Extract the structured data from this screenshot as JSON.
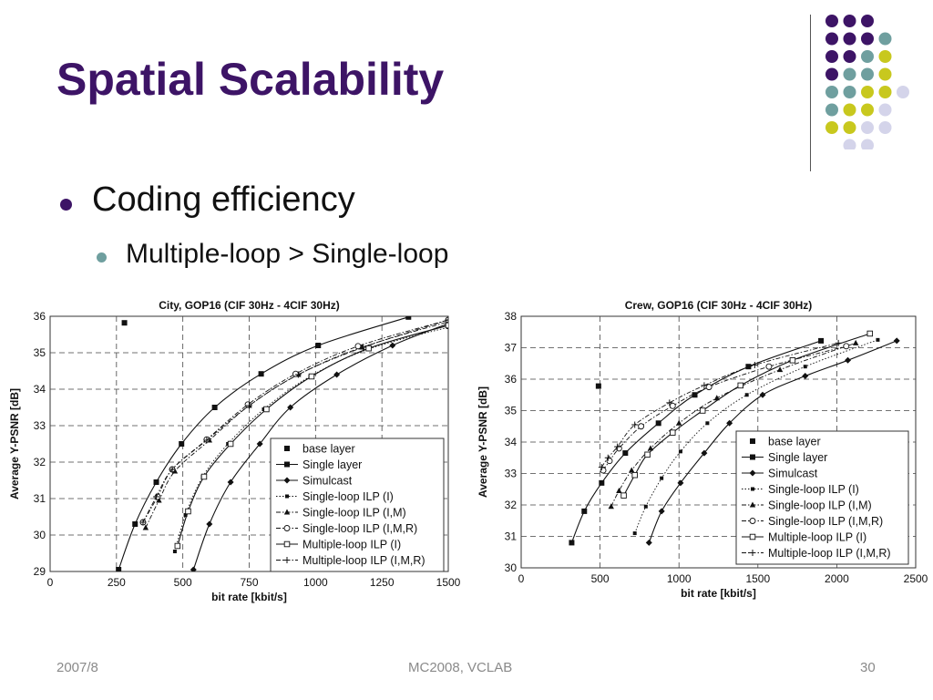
{
  "slide": {
    "title": "Spatial Scalability",
    "bullet1": "Coding efficiency",
    "bullet2": "Multiple-loop > Single-loop",
    "footer_left": "2007/8",
    "footer_center": "MC2008, VCLAB",
    "footer_right": "30"
  },
  "colors": {
    "title": "#3d1466",
    "dot_purple": "#3d1466",
    "dot_teal": "#6f9f9f",
    "dot_yellow": "#c8c81e",
    "dot_lavender": "#d4d4ea"
  },
  "chart_data": [
    {
      "type": "line",
      "title": "City, GOP16 (CIF 30Hz - 4CIF 30Hz)",
      "xlabel": "bit rate [kbit/s]",
      "ylabel": "Average Y-PSNR [dB]",
      "xlim": [
        0,
        1500
      ],
      "ylim": [
        29,
        36
      ],
      "xticks": [
        0,
        250,
        500,
        750,
        1000,
        1250,
        1500
      ],
      "yticks": [
        29,
        30,
        31,
        32,
        33,
        34,
        35,
        36
      ],
      "grid": true,
      "legend_position": "bottom-right",
      "series": [
        {
          "name": "base layer",
          "marker": "filled-square",
          "line": "none",
          "x": [
            280
          ],
          "y": [
            35.82
          ]
        },
        {
          "name": "Single layer",
          "marker": "filled-square",
          "line": "solid",
          "x": [
            258,
            320,
            400,
            495,
            620,
            795,
            1010,
            1350
          ],
          "y": [
            29.05,
            30.3,
            31.45,
            32.5,
            33.5,
            34.42,
            35.2,
            35.98
          ]
        },
        {
          "name": "Simulcast",
          "marker": "filled-diamond",
          "line": "solid",
          "x": [
            540,
            600,
            680,
            790,
            905,
            1080,
            1290,
            1500
          ],
          "y": [
            29.05,
            30.3,
            31.45,
            32.5,
            33.5,
            34.4,
            35.2,
            35.8
          ]
        },
        {
          "name": "Single-loop ILP (I)",
          "marker": "filled-small-square",
          "line": "dotted",
          "x": [
            470,
            510,
            575,
            670,
            805,
            980,
            1200,
            1500
          ],
          "y": [
            29.55,
            30.55,
            31.6,
            32.5,
            33.45,
            34.35,
            35.1,
            35.7
          ]
        },
        {
          "name": "Single-loop ILP (I,M)",
          "marker": "filled-triangle",
          "line": "dashdot",
          "x": [
            360,
            410,
            470,
            600,
            750,
            935,
            1175,
            1500
          ],
          "y": [
            30.2,
            30.95,
            31.75,
            32.6,
            33.55,
            34.4,
            35.15,
            35.85
          ]
        },
        {
          "name": "Single-loop ILP (I,M,R)",
          "marker": "open-circle",
          "line": "dashdot",
          "x": [
            350,
            405,
            460,
            590,
            745,
            925,
            1160,
            1500
          ],
          "y": [
            30.35,
            31.05,
            31.8,
            32.62,
            33.58,
            34.42,
            35.18,
            35.9
          ]
        },
        {
          "name": "Multiple-loop ILP (I)",
          "marker": "open-square",
          "line": "solid",
          "x": [
            480,
            520,
            580,
            680,
            815,
            985,
            1200,
            1500
          ],
          "y": [
            29.7,
            30.65,
            31.6,
            32.5,
            33.45,
            34.35,
            35.12,
            35.75
          ]
        },
        {
          "name": "Multiple-loop ILP (I,M,R)",
          "marker": "plus",
          "line": "dashdot",
          "x": [
            350,
            400,
            460,
            590,
            750,
            935,
            1180,
            1500
          ],
          "y": [
            30.35,
            31.05,
            31.8,
            32.6,
            33.55,
            34.4,
            35.15,
            35.9
          ]
        }
      ]
    },
    {
      "type": "line",
      "title": "Crew, GOP16 (CIF 30Hz - 4CIF 30Hz)",
      "xlabel": "bit rate [kbit/s]",
      "ylabel": "Average Y-PSNR [dB]",
      "xlim": [
        0,
        2500
      ],
      "ylim": [
        30,
        38
      ],
      "xticks": [
        0,
        500,
        1000,
        1500,
        2000,
        2500
      ],
      "yticks": [
        30,
        31,
        32,
        33,
        34,
        35,
        36,
        37,
        38
      ],
      "grid": true,
      "legend_position": "bottom-right",
      "series": [
        {
          "name": "base layer",
          "marker": "filled-square",
          "line": "none",
          "x": [
            490
          ],
          "y": [
            35.78
          ]
        },
        {
          "name": "Single layer",
          "marker": "filled-square",
          "line": "solid",
          "x": [
            320,
            400,
            510,
            660,
            870,
            1100,
            1440,
            1900
          ],
          "y": [
            30.8,
            31.8,
            32.7,
            33.65,
            34.6,
            35.5,
            36.4,
            37.22
          ]
        },
        {
          "name": "Simulcast",
          "marker": "filled-diamond",
          "line": "solid",
          "x": [
            810,
            890,
            1010,
            1160,
            1320,
            1530,
            1800,
            2070,
            2380
          ],
          "y": [
            30.8,
            31.8,
            32.7,
            33.65,
            34.6,
            35.5,
            36.1,
            36.6,
            37.22
          ]
        },
        {
          "name": "Single-loop ILP (I)",
          "marker": "filled-small-square",
          "line": "dotted",
          "x": [
            720,
            790,
            890,
            1010,
            1180,
            1430,
            1800,
            2260
          ],
          "y": [
            31.1,
            31.95,
            32.85,
            33.7,
            34.6,
            35.5,
            36.4,
            37.25
          ]
        },
        {
          "name": "Single-loop ILP (I,M)",
          "marker": "filled-triangle",
          "line": "dashdot",
          "x": [
            570,
            620,
            700,
            820,
            1000,
            1240,
            1640,
            2120
          ],
          "y": [
            31.95,
            32.45,
            33.1,
            33.8,
            34.6,
            35.4,
            36.3,
            37.15
          ]
        },
        {
          "name": "Single-loop ILP (I,M,R)",
          "marker": "open-circle",
          "line": "dashdot",
          "x": [
            520,
            560,
            620,
            760,
            960,
            1190,
            1570,
            2060
          ],
          "y": [
            33.1,
            33.4,
            33.8,
            34.5,
            35.15,
            35.75,
            36.4,
            37.05
          ]
        },
        {
          "name": "Multiple-loop ILP (I)",
          "marker": "open-square",
          "line": "solid",
          "x": [
            650,
            720,
            800,
            960,
            1150,
            1390,
            1720,
            2210
          ],
          "y": [
            32.3,
            32.95,
            33.6,
            34.3,
            35.0,
            35.8,
            36.6,
            37.45
          ]
        },
        {
          "name": "Multiple-loop ILP (I,M,R)",
          "marker": "plus",
          "line": "dashdot",
          "x": [
            510,
            550,
            610,
            720,
            940,
            1160,
            1480,
            2010
          ],
          "y": [
            33.2,
            33.5,
            33.85,
            34.55,
            35.25,
            35.8,
            36.45,
            37.15
          ]
        }
      ]
    }
  ]
}
